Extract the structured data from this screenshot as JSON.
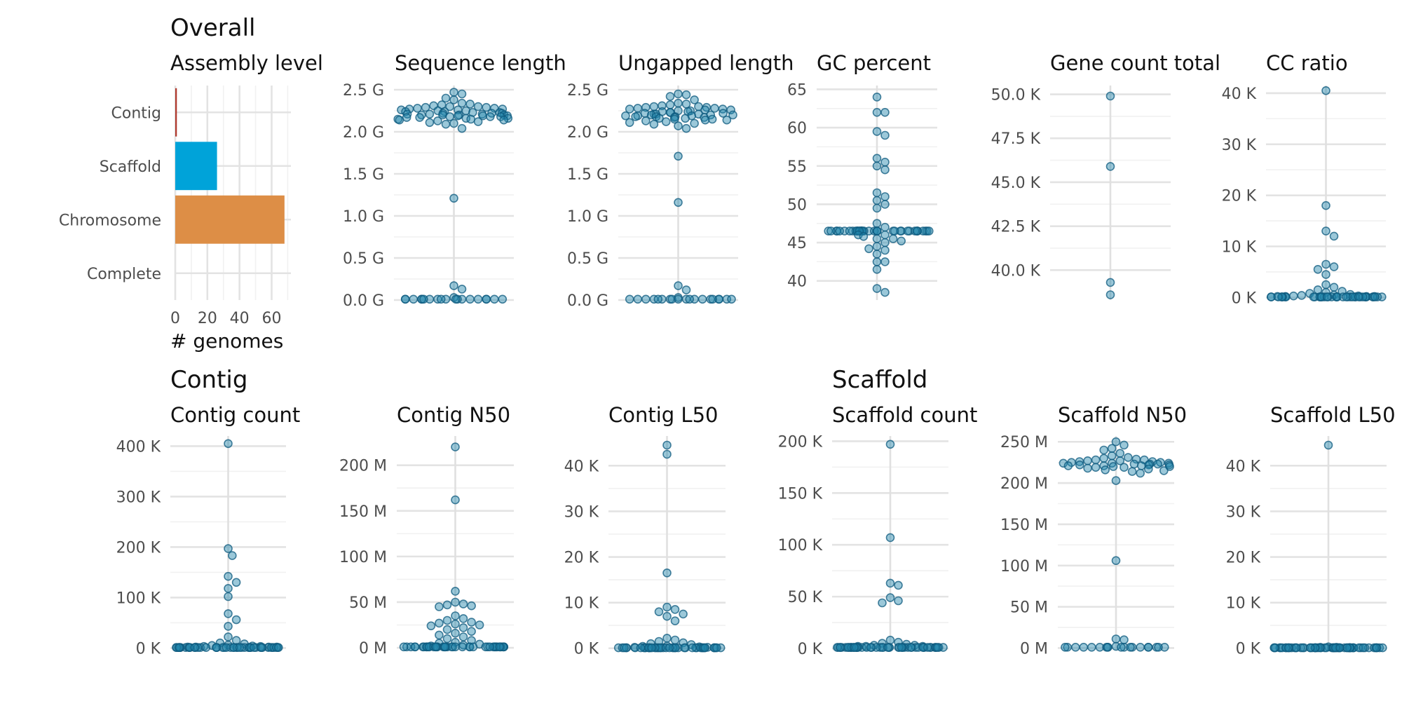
{
  "sections": {
    "overall": "Overall",
    "contig": "Contig",
    "scaffold": "Scaffold"
  },
  "chart_data": [
    {
      "id": "assembly_level",
      "type": "bar",
      "orientation": "horizontal",
      "title": "Assembly level",
      "xlabel": "# genomes",
      "categories": [
        "Contig",
        "Scaffold",
        "Chromosome",
        "Complete"
      ],
      "values": [
        1,
        26,
        68,
        0
      ],
      "colors": [
        "#b03a2e",
        "#00a3d9",
        "#dd8e46",
        "#999999"
      ],
      "xlim": [
        0,
        72
      ],
      "xticks": [
        0,
        20,
        40,
        60
      ],
      "xtick_labels": [
        "0",
        "20",
        "40",
        "60"
      ]
    },
    {
      "id": "sequence_length",
      "type": "scatter",
      "subtype": "beeswarm",
      "title": "Sequence length",
      "ylim": [
        0,
        2.55
      ],
      "yticks": [
        0,
        0.5,
        1.0,
        1.5,
        2.0,
        2.5
      ],
      "ytick_labels": [
        "0.0 G",
        "0.5 G",
        "1.0 G",
        "1.5 G",
        "2.0 G",
        "2.5 G"
      ],
      "values": [
        2.47,
        2.45,
        2.4,
        2.38,
        2.34,
        2.33,
        2.32,
        2.31,
        2.3,
        2.3,
        2.29,
        2.29,
        2.28,
        2.28,
        2.27,
        2.27,
        2.26,
        2.26,
        2.25,
        2.25,
        2.24,
        2.24,
        2.23,
        2.23,
        2.22,
        2.22,
        2.22,
        2.21,
        2.21,
        2.21,
        2.2,
        2.2,
        2.2,
        2.2,
        2.19,
        2.19,
        2.19,
        2.18,
        2.18,
        2.18,
        2.17,
        2.17,
        2.16,
        2.16,
        2.15,
        2.15,
        2.14,
        2.14,
        2.13,
        2.12,
        2.11,
        2.1,
        2.09,
        2.04,
        1.21,
        0.17,
        0.13,
        0.03,
        0.01,
        0.01,
        0.01,
        0.01,
        0.01,
        0.01,
        0.01,
        0.01,
        0.01,
        0.01,
        0.01,
        0.01,
        0.01,
        0.01,
        0.01,
        0.01,
        0.01,
        0.01,
        0.01
      ]
    },
    {
      "id": "ungapped_length",
      "type": "scatter",
      "subtype": "beeswarm",
      "title": "Ungapped length",
      "ylim": [
        0,
        2.55
      ],
      "yticks": [
        0,
        0.5,
        1.0,
        1.5,
        2.0,
        2.5
      ],
      "ytick_labels": [
        "0.0 G",
        "0.5 G",
        "1.0 G",
        "1.5 G",
        "2.0 G",
        "2.5 G"
      ],
      "values": [
        2.45,
        2.44,
        2.42,
        2.38,
        2.34,
        2.33,
        2.32,
        2.31,
        2.3,
        2.3,
        2.29,
        2.29,
        2.28,
        2.28,
        2.27,
        2.27,
        2.26,
        2.26,
        2.25,
        2.25,
        2.24,
        2.24,
        2.23,
        2.23,
        2.22,
        2.22,
        2.21,
        2.21,
        2.21,
        2.2,
        2.2,
        2.2,
        2.19,
        2.19,
        2.19,
        2.18,
        2.18,
        2.18,
        2.17,
        2.17,
        2.16,
        2.16,
        2.15,
        2.15,
        2.14,
        2.14,
        2.13,
        2.12,
        2.11,
        2.1,
        2.09,
        2.07,
        2.04,
        1.71,
        1.16,
        0.17,
        0.12,
        0.03,
        0.01,
        0.01,
        0.01,
        0.01,
        0.01,
        0.01,
        0.01,
        0.01,
        0.01,
        0.01,
        0.01,
        0.01,
        0.01,
        0.01,
        0.01,
        0.01,
        0.01,
        0.01,
        0.01
      ]
    },
    {
      "id": "gc_percent",
      "type": "scatter",
      "subtype": "beeswarm",
      "title": "GC percent",
      "ylim": [
        37.5,
        65.5
      ],
      "yticks": [
        40,
        45,
        50,
        55,
        60,
        65
      ],
      "ytick_labels": [
        "40",
        "45",
        "50",
        "55",
        "60",
        "65"
      ],
      "values": [
        64.0,
        62.0,
        62.0,
        59.5,
        59.0,
        56.0,
        55.5,
        55.0,
        54.5,
        51.5,
        51.0,
        50.5,
        50.0,
        49.5,
        47.5,
        47.0,
        46.5,
        46.5,
        46.5,
        46.5,
        46.5,
        46.5,
        46.5,
        46.5,
        46.5,
        46.5,
        46.5,
        46.5,
        46.5,
        46.5,
        46.5,
        46.5,
        46.5,
        46.5,
        46.5,
        46.5,
        46.5,
        46.5,
        46.5,
        46.5,
        46.5,
        46.5,
        46.5,
        46.5,
        46.5,
        46.5,
        46.5,
        46.5,
        46.5,
        46.5,
        46.5,
        46.5,
        46.5,
        46.5,
        46.5,
        46.0,
        46.0,
        45.8,
        45.5,
        45.5,
        45.2,
        45.0,
        44.5,
        44.2,
        44.0,
        43.5,
        42.5,
        42.5,
        41.5,
        39.0,
        38.5
      ]
    },
    {
      "id": "gene_count_total",
      "type": "scatter",
      "subtype": "beeswarm",
      "title": "Gene count total",
      "ylim": [
        38.3,
        50.5
      ],
      "yticks": [
        40,
        42.5,
        45,
        47.5,
        50
      ],
      "ytick_labels": [
        "40.0 K",
        "42.5 K",
        "45.0 K",
        "47.5 K",
        "50.0 K"
      ],
      "values": [
        49.9,
        45.9,
        39.3,
        38.6
      ]
    },
    {
      "id": "cc_ratio",
      "type": "scatter",
      "subtype": "beeswarm",
      "title": "CC ratio",
      "ylim": [
        -0.5,
        41.5
      ],
      "yticks": [
        0,
        10,
        20,
        30,
        40
      ],
      "ytick_labels": [
        "0 K",
        "10 K",
        "20 K",
        "30 K",
        "40 K"
      ],
      "values": [
        40.5,
        18.0,
        13.0,
        12.0,
        6.5,
        6.0,
        5.5,
        4.5,
        2.5,
        2.0,
        1.5,
        1.2,
        1.0,
        0.8,
        0.6,
        0.5,
        0.4,
        0.3,
        0.3,
        0.2,
        0.2,
        0.2,
        0.2,
        0.1,
        0.1,
        0.1,
        0.1,
        0.1,
        0.1,
        0.1,
        0.1,
        0.1,
        0.1,
        0.1,
        0.1,
        0.1,
        0.1,
        0.1,
        0.1,
        0.1,
        0.1,
        0.1,
        0.1,
        0.1,
        0.1,
        0.1,
        0.1,
        0.1,
        0.1,
        0.1,
        0.1,
        0.1,
        0.1,
        0.1,
        0.1,
        0.1,
        0.1,
        0.1,
        0.1,
        0.1,
        0.1,
        0.1
      ]
    },
    {
      "id": "contig_count",
      "type": "scatter",
      "subtype": "beeswarm",
      "title": "Contig count",
      "ylim": [
        -5,
        420
      ],
      "yticks": [
        0,
        100,
        200,
        300,
        400
      ],
      "ytick_labels": [
        "0 K",
        "100 K",
        "200 K",
        "300 K",
        "400 K"
      ],
      "values": [
        405,
        197,
        183,
        142,
        130,
        118,
        102,
        68,
        56,
        43,
        22,
        15,
        10,
        8,
        6,
        5,
        4,
        3,
        3,
        2,
        2,
        2,
        2,
        1,
        1,
        1,
        1,
        1,
        1,
        1,
        1,
        1,
        1,
        1,
        1,
        1,
        1,
        1,
        1,
        1,
        1,
        1,
        1,
        1,
        1,
        1,
        1,
        1,
        1,
        1,
        1,
        1,
        1,
        1,
        1,
        1,
        1,
        1,
        1,
        1,
        1,
        1,
        1,
        1,
        1,
        1,
        1,
        1,
        1,
        1,
        1
      ]
    },
    {
      "id": "contig_n50",
      "type": "scatter",
      "subtype": "beeswarm",
      "title": "Contig N50",
      "ylim": [
        -3,
        232
      ],
      "yticks": [
        0,
        50,
        100,
        150,
        200
      ],
      "ytick_labels": [
        "0 M",
        "50 M",
        "100 M",
        "150 M",
        "200 M"
      ],
      "values": [
        220,
        162,
        62,
        50,
        48,
        47,
        46,
        45,
        35,
        32,
        30,
        28,
        27,
        26,
        25,
        24,
        22,
        20,
        18,
        16,
        14,
        12,
        10,
        8,
        6,
        5,
        4,
        3,
        2,
        1,
        1,
        1,
        1,
        1,
        1,
        1,
        1,
        1,
        1,
        1,
        1,
        1,
        1,
        1,
        1,
        1,
        1,
        1,
        1,
        1,
        1,
        1,
        1,
        1,
        1,
        1,
        1,
        1,
        1,
        1,
        1,
        1,
        1,
        1,
        1,
        1,
        1,
        1,
        1,
        1,
        1,
        1,
        1,
        1,
        1,
        1
      ]
    },
    {
      "id": "contig_l50",
      "type": "scatter",
      "subtype": "beeswarm",
      "title": "Contig L50",
      "ylim": [
        -0.5,
        46.5
      ],
      "yticks": [
        0,
        10,
        20,
        30,
        40
      ],
      "ytick_labels": [
        "0 K",
        "10 K",
        "20 K",
        "30 K",
        "40 K"
      ],
      "values": [
        44.5,
        42.5,
        16.5,
        9.0,
        8.5,
        8.0,
        7.5,
        7.0,
        6.0,
        2.2,
        1.8,
        1.5,
        1.2,
        1.0,
        0.8,
        0.5,
        0.4,
        0.3,
        0.2,
        0.2,
        0.1,
        0.1,
        0.1,
        0.1,
        0.1,
        0.1,
        0.1,
        0.1,
        0.1,
        0.1,
        0.1,
        0.1,
        0.1,
        0.1,
        0.1,
        0.1,
        0.1,
        0.1,
        0.1,
        0.1,
        0.1,
        0.1,
        0.1,
        0.1,
        0.1,
        0.1,
        0.1,
        0.1,
        0.1,
        0.1,
        0.1,
        0.1,
        0.1,
        0.1,
        0.1,
        0.1,
        0.1,
        0.1,
        0.1,
        0.1,
        0.1,
        0.1,
        0.1,
        0.1,
        0.1
      ]
    },
    {
      "id": "scaffold_count",
      "type": "scatter",
      "subtype": "beeswarm",
      "title": "Scaffold count",
      "ylim": [
        -2,
        205
      ],
      "yticks": [
        0,
        50,
        100,
        150,
        200
      ],
      "ytick_labels": [
        "0 K",
        "50 K",
        "100 K",
        "150 K",
        "200 K"
      ],
      "values": [
        197,
        107,
        63,
        61,
        49,
        46,
        44,
        8,
        6,
        5,
        4,
        3,
        3,
        2,
        2,
        2,
        1,
        1,
        1,
        1,
        1,
        1,
        1,
        1,
        1,
        1,
        1,
        1,
        1,
        1,
        1,
        1,
        1,
        1,
        1,
        1,
        1,
        1,
        1,
        1,
        1,
        1,
        1,
        1,
        1,
        1,
        1,
        1,
        1,
        1,
        1,
        1,
        1,
        1,
        1,
        1,
        1,
        1,
        1,
        1,
        1,
        1,
        1,
        1,
        1,
        1,
        1,
        1,
        1,
        1
      ]
    },
    {
      "id": "scaffold_n50",
      "type": "scatter",
      "subtype": "beeswarm",
      "title": "Scaffold N50",
      "ylim": [
        -3,
        257
      ],
      "yticks": [
        0,
        50,
        100,
        150,
        200,
        250
      ],
      "ytick_labels": [
        "0 M",
        "50 M",
        "100 M",
        "150 M",
        "200 M",
        "250 M"
      ],
      "values": [
        250,
        246,
        242,
        240,
        236,
        233,
        231,
        230,
        229,
        228,
        228,
        227,
        227,
        226,
        226,
        225,
        225,
        224,
        224,
        224,
        223,
        223,
        223,
        222,
        222,
        222,
        221,
        221,
        221,
        220,
        220,
        219,
        219,
        218,
        217,
        216,
        215,
        214,
        212,
        203,
        106,
        11,
        10,
        2,
        1,
        1,
        1,
        1,
        1,
        1,
        1,
        1,
        1,
        1,
        1,
        1,
        1,
        1,
        1,
        1,
        1,
        1,
        1
      ]
    },
    {
      "id": "scaffold_l50",
      "type": "scatter",
      "subtype": "beeswarm",
      "title": "Scaffold L50",
      "ylim": [
        -0.5,
        46.5
      ],
      "yticks": [
        0,
        10,
        20,
        30,
        40
      ],
      "ytick_labels": [
        "0 K",
        "10 K",
        "20 K",
        "30 K",
        "40 K"
      ],
      "values": [
        44.5,
        0.3,
        0.2,
        0.2,
        0.1,
        0.1,
        0.1,
        0.1,
        0.1,
        0.1,
        0.1,
        0.1,
        0.1,
        0.1,
        0.1,
        0.1,
        0.1,
        0.1,
        0.1,
        0.1,
        0.1,
        0.1,
        0.1,
        0.1,
        0.1,
        0.1,
        0.1,
        0.1,
        0.1,
        0.1,
        0.1,
        0.1,
        0.1,
        0.1,
        0.1,
        0.1,
        0.1,
        0.1,
        0.1,
        0.1,
        0.1,
        0.1,
        0.1,
        0.1,
        0.1,
        0.1,
        0.1,
        0.1,
        0.1,
        0.1,
        0.1,
        0.1,
        0.1,
        0.1,
        0.1,
        0.1,
        0.1,
        0.1,
        0.1,
        0.1,
        0.1,
        0.1,
        0.1,
        0.1,
        0.1,
        0.1,
        0.1,
        0.1,
        0.1,
        0.1
      ]
    }
  ]
}
